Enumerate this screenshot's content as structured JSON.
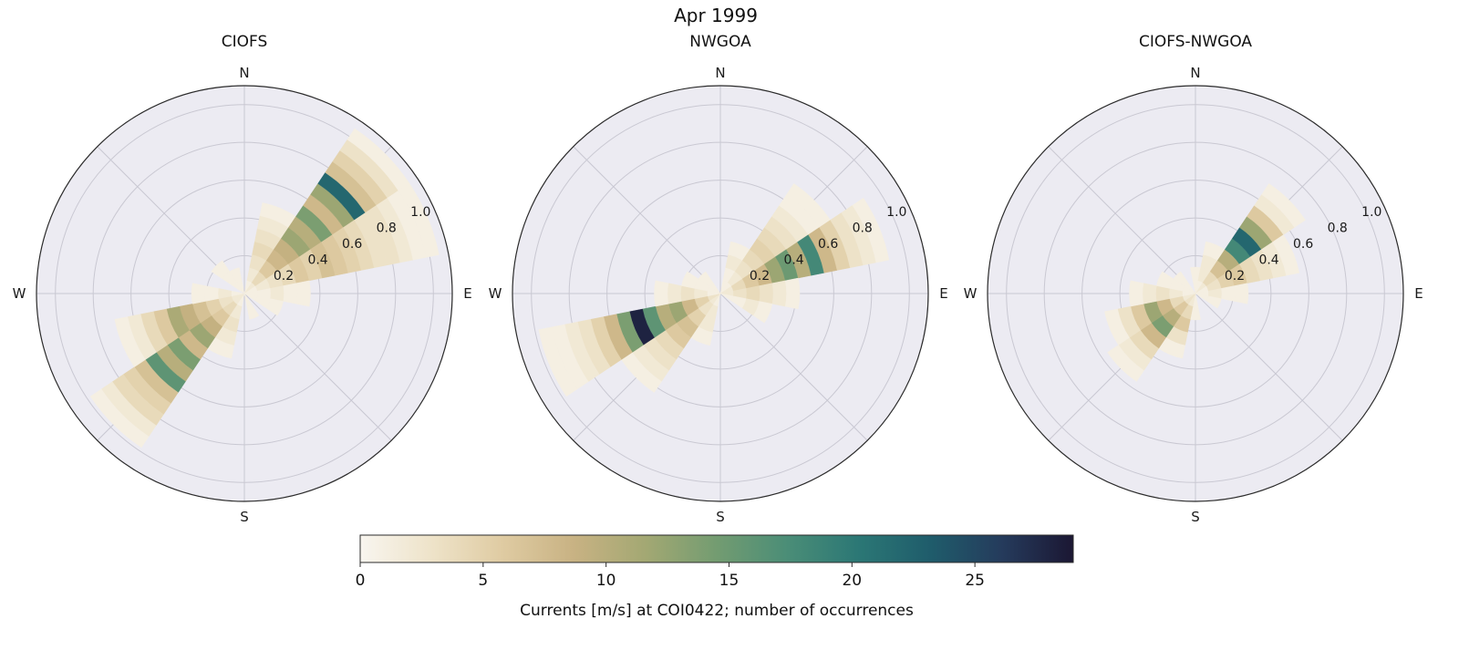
{
  "figure": {
    "suptitle": "Apr 1999",
    "background": "#ffffff"
  },
  "polar_style": {
    "bg": "#ecebf2",
    "grid": "#c9c8d2",
    "edge": "#2b2b2b",
    "text": "#1a1a1a"
  },
  "colorbar": {
    "label": "Currents [m/s] at COI0422; number of occurrences",
    "ticks": [
      0,
      5,
      10,
      15,
      20,
      25
    ],
    "vmin": 0,
    "vmax": 29,
    "stops": [
      {
        "t": 0.0,
        "c": "#f8f5ef"
      },
      {
        "t": 0.1,
        "c": "#eee3c9"
      },
      {
        "t": 0.2,
        "c": "#dfcba2"
      },
      {
        "t": 0.3,
        "c": "#c8b283"
      },
      {
        "t": 0.4,
        "c": "#a3a873"
      },
      {
        "t": 0.5,
        "c": "#739c71"
      },
      {
        "t": 0.6,
        "c": "#4a8d77"
      },
      {
        "t": 0.7,
        "c": "#2b7775"
      },
      {
        "t": 0.8,
        "c": "#1f5c6b"
      },
      {
        "t": 0.9,
        "c": "#253b5c"
      },
      {
        "t": 1.0,
        "c": "#1b1733"
      }
    ]
  },
  "chart_data": [
    {
      "type": "polar_rose_heatmap",
      "title": "CIOFS",
      "compass_labels": {
        "n": "N",
        "e": "E",
        "s": "S",
        "w": "W"
      },
      "radial_ticks": [
        0.2,
        0.4,
        0.6,
        0.8,
        1.0
      ],
      "radial_tick_labels": [
        "0.2",
        "0.4",
        "0.6",
        "0.8",
        "1.0"
      ],
      "r_max": 1.1,
      "dir_bin_width_deg": 22.5,
      "speed_bin_width": 0.07,
      "n_speed_bins": 15,
      "sectors": [
        {
          "dir_deg": 22.5,
          "counts": [
            1,
            2,
            3,
            4,
            3,
            2,
            1,
            0,
            0,
            0,
            0,
            0,
            0,
            0,
            0
          ]
        },
        {
          "dir_deg": 45,
          "counts": [
            2,
            4,
            6,
            8,
            9,
            12,
            10,
            14,
            8,
            12,
            22,
            7,
            5,
            3,
            1
          ]
        },
        {
          "dir_deg": 67.5,
          "counts": [
            1,
            2,
            3,
            4,
            6,
            5,
            7,
            6,
            5,
            4,
            3,
            3,
            2,
            1,
            1
          ]
        },
        {
          "dir_deg": 90,
          "counts": [
            1,
            1,
            2,
            1,
            1,
            0,
            0,
            0,
            0,
            0,
            0,
            0,
            0,
            0,
            0
          ]
        },
        {
          "dir_deg": 112.5,
          "counts": [
            1,
            1,
            1,
            0,
            0,
            0,
            0,
            0,
            0,
            0,
            0,
            0,
            0,
            0,
            0
          ]
        },
        {
          "dir_deg": 157.5,
          "counts": [
            1,
            1,
            0,
            0,
            0,
            0,
            0,
            0,
            0,
            0,
            0,
            0,
            0,
            0,
            0
          ]
        },
        {
          "dir_deg": 202.5,
          "counts": [
            1,
            2,
            3,
            2,
            1,
            0,
            0,
            0,
            0,
            0,
            0,
            0,
            0,
            0,
            0
          ]
        },
        {
          "dir_deg": 225,
          "counts": [
            2,
            4,
            6,
            9,
            12,
            8,
            14,
            10,
            16,
            7,
            5,
            4,
            2,
            1,
            0
          ]
        },
        {
          "dir_deg": 247.5,
          "counts": [
            2,
            3,
            5,
            7,
            9,
            11,
            6,
            4,
            2,
            1,
            0,
            0,
            0,
            0,
            0
          ]
        },
        {
          "dir_deg": 270,
          "counts": [
            1,
            2,
            1,
            1,
            0,
            0,
            0,
            0,
            0,
            0,
            0,
            0,
            0,
            0,
            0
          ]
        },
        {
          "dir_deg": 315,
          "counts": [
            1,
            1,
            1,
            0,
            0,
            0,
            0,
            0,
            0,
            0,
            0,
            0,
            0,
            0,
            0
          ]
        },
        {
          "dir_deg": 337.5,
          "counts": [
            1,
            1,
            0,
            0,
            0,
            0,
            0,
            0,
            0,
            0,
            0,
            0,
            0,
            0,
            0
          ]
        }
      ]
    },
    {
      "type": "polar_rose_heatmap",
      "title": "NWGOA",
      "compass_labels": {
        "n": "N",
        "e": "E",
        "s": "S",
        "w": "W"
      },
      "radial_ticks": [
        0.2,
        0.4,
        0.6,
        0.8,
        1.0
      ],
      "radial_tick_labels": [
        "0.2",
        "0.4",
        "0.6",
        "0.8",
        "1.0"
      ],
      "r_max": 1.1,
      "dir_bin_width_deg": 22.5,
      "speed_bin_width": 0.07,
      "n_speed_bins": 15,
      "sectors": [
        {
          "dir_deg": 22.5,
          "counts": [
            1,
            1,
            2,
            1,
            0,
            0,
            0,
            0,
            0,
            0,
            0,
            0,
            0,
            0,
            0
          ]
        },
        {
          "dir_deg": 45,
          "counts": [
            1,
            2,
            3,
            4,
            5,
            4,
            3,
            2,
            1,
            1,
            0,
            0,
            0,
            0,
            0
          ]
        },
        {
          "dir_deg": 67.5,
          "counts": [
            2,
            4,
            6,
            8,
            12,
            15,
            10,
            18,
            8,
            5,
            3,
            2,
            1,
            0,
            0
          ]
        },
        {
          "dir_deg": 90,
          "counts": [
            2,
            3,
            4,
            3,
            2,
            1,
            0,
            0,
            0,
            0,
            0,
            0,
            0,
            0,
            0
          ]
        },
        {
          "dir_deg": 112.5,
          "counts": [
            1,
            1,
            2,
            1,
            0,
            0,
            0,
            0,
            0,
            0,
            0,
            0,
            0,
            0,
            0
          ]
        },
        {
          "dir_deg": 202.5,
          "counts": [
            1,
            2,
            2,
            1,
            0,
            0,
            0,
            0,
            0,
            0,
            0,
            0,
            0,
            0,
            0
          ]
        },
        {
          "dir_deg": 225,
          "counts": [
            2,
            3,
            5,
            7,
            6,
            4,
            3,
            2,
            1,
            0,
            0,
            0,
            0,
            0,
            0
          ]
        },
        {
          "dir_deg": 247.5,
          "counts": [
            3,
            5,
            8,
            12,
            10,
            16,
            28,
            14,
            8,
            5,
            3,
            2,
            1,
            1,
            0
          ]
        },
        {
          "dir_deg": 270,
          "counts": [
            1,
            2,
            3,
            2,
            1,
            0,
            0,
            0,
            0,
            0,
            0,
            0,
            0,
            0,
            0
          ]
        },
        {
          "dir_deg": 292.5,
          "counts": [
            1,
            1,
            1,
            0,
            0,
            0,
            0,
            0,
            0,
            0,
            0,
            0,
            0,
            0,
            0
          ]
        },
        {
          "dir_deg": 315,
          "counts": [
            1,
            1,
            0,
            0,
            0,
            0,
            0,
            0,
            0,
            0,
            0,
            0,
            0,
            0,
            0
          ]
        }
      ]
    },
    {
      "type": "polar_rose_heatmap",
      "title": "CIOFS-NWGOA",
      "compass_labels": {
        "n": "N",
        "e": "E",
        "s": "S",
        "w": "W"
      },
      "radial_ticks": [
        0.2,
        0.4,
        0.6,
        0.8,
        1.0
      ],
      "radial_tick_labels": [
        "0.2",
        "0.4",
        "0.6",
        "0.8",
        "1.0"
      ],
      "r_max": 1.1,
      "dir_bin_width_deg": 22.5,
      "speed_bin_width": 0.07,
      "n_speed_bins": 15,
      "sectors": [
        {
          "dir_deg": 0,
          "counts": [
            1,
            1,
            0,
            0,
            0,
            0,
            0,
            0,
            0,
            0,
            0,
            0,
            0,
            0,
            0
          ]
        },
        {
          "dir_deg": 22.5,
          "counts": [
            1,
            2,
            2,
            1,
            0,
            0,
            0,
            0,
            0,
            0,
            0,
            0,
            0,
            0,
            0
          ]
        },
        {
          "dir_deg": 45,
          "counts": [
            2,
            4,
            7,
            10,
            18,
            22,
            12,
            6,
            2,
            1,
            0,
            0,
            0,
            0,
            0
          ]
        },
        {
          "dir_deg": 67.5,
          "counts": [
            1,
            3,
            5,
            6,
            4,
            3,
            2,
            1,
            0,
            0,
            0,
            0,
            0,
            0,
            0
          ]
        },
        {
          "dir_deg": 90,
          "counts": [
            1,
            2,
            1,
            1,
            0,
            0,
            0,
            0,
            0,
            0,
            0,
            0,
            0,
            0,
            0
          ]
        },
        {
          "dir_deg": 112.5,
          "counts": [
            1,
            1,
            0,
            0,
            0,
            0,
            0,
            0,
            0,
            0,
            0,
            0,
            0,
            0,
            0
          ]
        },
        {
          "dir_deg": 180,
          "counts": [
            1,
            1,
            0,
            0,
            0,
            0,
            0,
            0,
            0,
            0,
            0,
            0,
            0,
            0,
            0
          ]
        },
        {
          "dir_deg": 202.5,
          "counts": [
            2,
            4,
            6,
            3,
            1,
            0,
            0,
            0,
            0,
            0,
            0,
            0,
            0,
            0,
            0
          ]
        },
        {
          "dir_deg": 225,
          "counts": [
            3,
            6,
            10,
            14,
            8,
            4,
            2,
            1,
            0,
            0,
            0,
            0,
            0,
            0,
            0
          ]
        },
        {
          "dir_deg": 247.5,
          "counts": [
            2,
            4,
            8,
            12,
            6,
            3,
            1,
            0,
            0,
            0,
            0,
            0,
            0,
            0,
            0
          ]
        },
        {
          "dir_deg": 270,
          "counts": [
            1,
            2,
            3,
            2,
            1,
            0,
            0,
            0,
            0,
            0,
            0,
            0,
            0,
            0,
            0
          ]
        },
        {
          "dir_deg": 292.5,
          "counts": [
            1,
            1,
            1,
            0,
            0,
            0,
            0,
            0,
            0,
            0,
            0,
            0,
            0,
            0,
            0
          ]
        },
        {
          "dir_deg": 315,
          "counts": [
            1,
            1,
            0,
            0,
            0,
            0,
            0,
            0,
            0,
            0,
            0,
            0,
            0,
            0,
            0
          ]
        }
      ]
    }
  ]
}
